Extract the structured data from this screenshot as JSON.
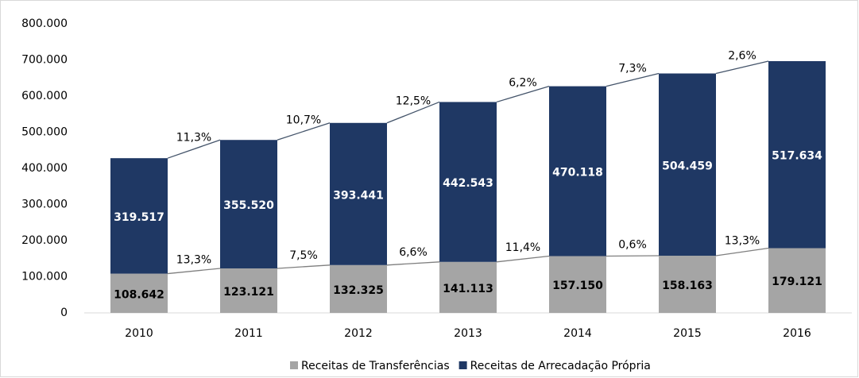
{
  "chart_data": {
    "type": "stacked-bar",
    "categories": [
      "2010",
      "2011",
      "2012",
      "2013",
      "2014",
      "2015",
      "2016"
    ],
    "series": [
      {
        "name": "Receitas de Transferências",
        "color": "#a5a5a5",
        "values": [
          108642,
          123121,
          132325,
          141113,
          157150,
          158163,
          179121
        ],
        "value_labels": [
          "108.642",
          "123.121",
          "132.325",
          "141.113",
          "157.150",
          "158.163",
          "179.121"
        ],
        "growth_labels": [
          "13,3%",
          "7,5%",
          "6,6%",
          "11,4%",
          "0,6%",
          "13,3%"
        ],
        "line_color": "#7f7f7f"
      },
      {
        "name": "Receitas de Arrecadação Própria",
        "color": "#1f3864",
        "values": [
          319517,
          355520,
          393441,
          442543,
          470118,
          504459,
          517634
        ],
        "value_labels": [
          "319.517",
          "355.520",
          "393.441",
          "442.543",
          "470.118",
          "504.459",
          "517.634"
        ],
        "growth_labels": [
          "11,3%",
          "10,7%",
          "12,5%",
          "6,2%",
          "7,3%",
          "2,6%"
        ],
        "line_color": "#44546a"
      }
    ],
    "ylim": [
      0,
      800000
    ],
    "yticks": [
      0,
      {
        "value": 100000,
        "label": "100.000"
      },
      {
        "value": 200000,
        "label": "200.000"
      },
      {
        "value": 300000,
        "label": "300.000"
      },
      {
        "value": 400000,
        "label": "400.000"
      },
      {
        "value": 500000,
        "label": "500.000"
      },
      {
        "value": 600000,
        "label": "600.000"
      },
      {
        "value": 700000,
        "label": "700.000"
      },
      {
        "value": 800000,
        "label": "800.000"
      }
    ],
    "legend": "bottom"
  }
}
